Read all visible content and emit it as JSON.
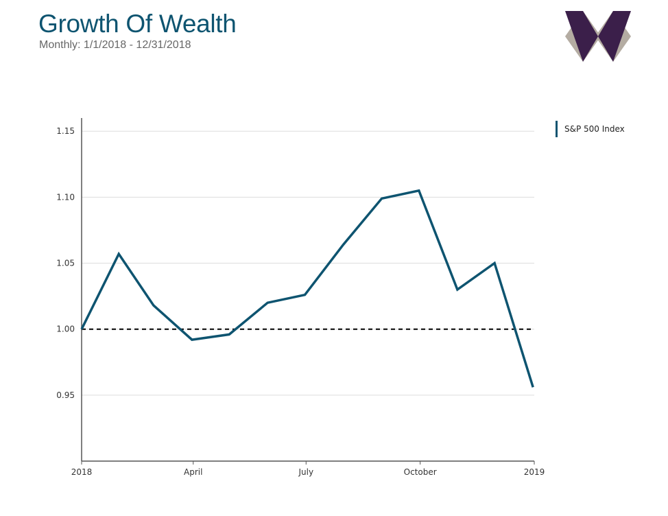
{
  "header": {
    "title": "Growth Of Wealth",
    "subtitle": "Monthly: 1/1/2018 - 12/31/2018"
  },
  "logo": {
    "icon": "w-diamond-logo",
    "colors": {
      "dark": "#3b1f4a",
      "light": "#b4aca2"
    }
  },
  "colors": {
    "series": "#0e5470",
    "baseline": "#000000",
    "grid": "#dddddd",
    "axis": "#555555"
  },
  "chart_data": {
    "type": "line",
    "title": "Growth Of Wealth",
    "subtitle": "Monthly: 1/1/2018 - 12/31/2018",
    "x": [
      "2018-01-01",
      "2018-01-31",
      "2018-02-28",
      "2018-03-31",
      "2018-04-30",
      "2018-05-31",
      "2018-06-30",
      "2018-07-31",
      "2018-08-31",
      "2018-09-30",
      "2018-10-31",
      "2018-11-30",
      "2018-12-31"
    ],
    "x_ticks": [
      {
        "date": "2018-01-01",
        "label": "2018"
      },
      {
        "date": "2018-04-01",
        "label": "April"
      },
      {
        "date": "2018-07-01",
        "label": "July"
      },
      {
        "date": "2018-10-01",
        "label": "October"
      },
      {
        "date": "2019-01-01",
        "label": "2019"
      }
    ],
    "series": [
      {
        "name": "S&P 500 Index",
        "values": [
          1.0,
          1.057,
          1.018,
          0.992,
          0.996,
          1.02,
          1.026,
          1.064,
          1.099,
          1.105,
          1.03,
          1.05,
          0.956
        ]
      }
    ],
    "reference_line": {
      "y": 1.0,
      "style": "dashed"
    },
    "ylim": [
      0.9,
      1.16
    ],
    "y_ticks": [
      "0.95",
      "1.00",
      "1.05",
      "1.10",
      "1.15"
    ],
    "xlim": [
      "2018-01-01",
      "2019-01-01"
    ],
    "grid": true,
    "legend": "top-right"
  }
}
